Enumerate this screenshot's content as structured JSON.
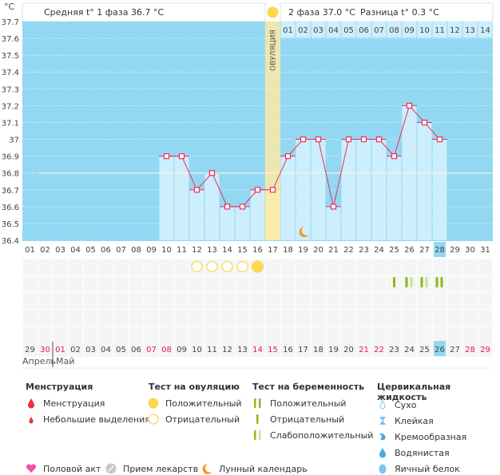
{
  "chart_data": {
    "type": "line",
    "yunit": "°C",
    "ylim": [
      36.4,
      37.7
    ],
    "yticks": [
      "37.7",
      "37.6",
      "37.5",
      "37.4",
      "37.3",
      "37.2",
      "37.1",
      "37",
      "36.9",
      "36.8",
      "36.7",
      "36.6",
      "36.5",
      "36.4"
    ],
    "grid": true,
    "cycle_days": [
      "01",
      "02",
      "03",
      "04",
      "05",
      "06",
      "07",
      "08",
      "09",
      "10",
      "11",
      "12",
      "13",
      "14",
      "15",
      "16",
      "17",
      "18",
      "19",
      "20",
      "21",
      "22",
      "23",
      "24",
      "25",
      "26",
      "27",
      "28",
      "29",
      "30",
      "31"
    ],
    "temperatures": [
      null,
      null,
      null,
      null,
      null,
      null,
      null,
      null,
      null,
      36.9,
      36.9,
      36.7,
      36.8,
      36.6,
      36.6,
      36.7,
      36.7,
      36.9,
      37.0,
      37.0,
      36.6,
      37.0,
      37.0,
      37.0,
      36.9,
      37.2,
      37.1,
      37.0,
      null,
      null,
      null
    ],
    "cover_line": 36.8,
    "ovulation_day": 17,
    "ovulation_label": "ОВУЛЯЦИЯ",
    "current_cycle_day": 28,
    "phase2_days": [
      "01",
      "02",
      "03",
      "04",
      "05",
      "06",
      "07",
      "08",
      "09",
      "10",
      "11",
      "12",
      "13",
      "14"
    ],
    "moon_day": 19,
    "ovulation_tests": {
      "12": "negative",
      "13": "negative",
      "14": "negative",
      "15": "negative",
      "16": "positive"
    },
    "pregnancy_tests": {
      "25": "negative",
      "26": "weak",
      "27": "weak",
      "28": "positive"
    },
    "calendar_dates": [
      "29",
      "30",
      "01",
      "02",
      "03",
      "04",
      "05",
      "06",
      "07",
      "08",
      "09",
      "10",
      "11",
      "12",
      "13",
      "14",
      "15",
      "16",
      "17",
      "18",
      "19",
      "20",
      "21",
      "22",
      "23",
      "24",
      "25",
      "26",
      "27",
      "28",
      "29"
    ],
    "weekend_dates_idx": [
      1,
      2,
      8,
      9,
      15,
      16,
      22,
      23,
      29,
      30
    ],
    "today_idx": 27,
    "months": [
      "Апрель",
      "Май"
    ]
  },
  "header": {
    "phase1": "Средняя t° 1 фаза 36.7 °C",
    "phase2": "2 фаза 37.0 °C",
    "diff": "Разница t° 0.3 °C"
  },
  "legend": {
    "menstruation": {
      "title": "Менструация",
      "items": [
        "Менструация",
        "Небольшие выделения"
      ]
    },
    "ovulation_test": {
      "title": "Тест на овуляцию",
      "items": [
        "Положительный",
        "Отрицательный"
      ]
    },
    "pregnancy_test": {
      "title": "Тест на беременность",
      "items": [
        "Положительный",
        "Отрицательный",
        "Слабоположительный"
      ]
    },
    "cervical": {
      "title": "Цервикальная жидкость",
      "items": [
        "Сухо",
        "Клейкая",
        "Кремообразная",
        "Водянистая",
        "Яичный белок"
      ]
    },
    "other": [
      "Половой акт",
      "Прием лекарств",
      "Лунный календарь"
    ]
  },
  "colors": {
    "plot_bg": "#93d8f2",
    "bar": "#cdeefc",
    "line": "#ee2d5a",
    "ovulation": "#fbeaa6",
    "sun": "#fcd84a",
    "test_green": "#8cba14",
    "test_light": "#c9e09a",
    "weekend": "#e8174f"
  }
}
